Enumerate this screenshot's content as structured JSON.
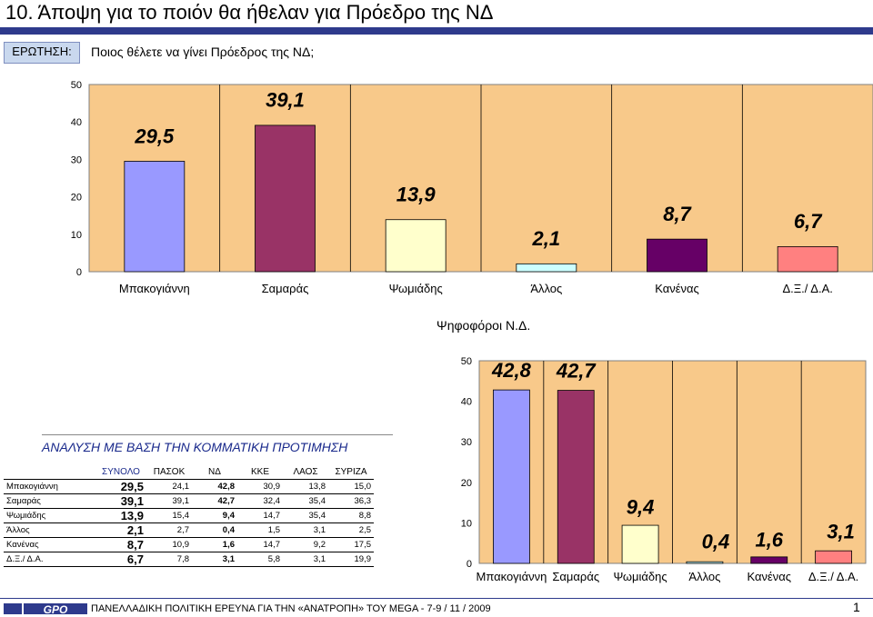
{
  "header": {
    "title": "10.  Άποψη για το ποιόν θα ήθελαν για Πρόεδρο της ΝΔ",
    "question_label": "ΕΡΩΤΗΣΗ:",
    "question_text": "Ποιος θέλετε να γίνει Πρόεδρος της ΝΔ;"
  },
  "colors": {
    "plot_bg": "#f8c98a",
    "title_rule": "#2e3a8c",
    "bar_colors": [
      "#9999ff",
      "#993366",
      "#ffffcc",
      "#ccffff",
      "#660066",
      "#ff8080"
    ]
  },
  "chart_data": [
    {
      "type": "bar",
      "title": "",
      "categories": [
        "Μπακογιάννη",
        "Σαμαράς",
        "Ψωμιάδης",
        "Άλλος",
        "Κανένας",
        "Δ.Ξ./ Δ.Α."
      ],
      "values": [
        29.5,
        39.1,
        13.9,
        2.1,
        8.7,
        6.7
      ],
      "value_labels": [
        "29,5",
        "39,1",
        "13,9",
        "2,1",
        "8,7",
        "6,7"
      ],
      "ylim": [
        0,
        50
      ],
      "yticks": [
        "0",
        "10",
        "20",
        "30",
        "40",
        "50"
      ],
      "grid": true
    },
    {
      "type": "bar",
      "title": "Ψηφοφόροι Ν.Δ.",
      "categories": [
        "Μπακογιάννη",
        "Σαμαράς",
        "Ψωμιάδης",
        "Άλλος",
        "Κανένας",
        "Δ.Ξ./ Δ.Α."
      ],
      "values": [
        42.8,
        42.7,
        9.4,
        0.4,
        1.6,
        3.1
      ],
      "value_labels": [
        "42,8",
        "42,7",
        "9,4",
        "0,4",
        "1,6",
        "3,1"
      ],
      "ylim": [
        0,
        50
      ],
      "yticks": [
        "0",
        "10",
        "20",
        "30",
        "40",
        "50"
      ],
      "grid": true
    }
  ],
  "analysis": {
    "title": "ΑΝΑΛΥΣΗ ΜΕ ΒΑΣΗ ΤΗΝ ΚΟΜΜΑΤΙΚΗ ΠΡΟΤΙΜΗΣΗ",
    "columns": [
      "ΣΥΝΟΛΟ",
      "ΠΑΣΟΚ",
      "ΝΔ",
      "ΚΚΕ",
      "ΛΑΟΣ",
      "ΣΥΡΙΖΑ"
    ],
    "rows": [
      {
        "name": "Μπακογιάννη",
        "values": [
          "29,5",
          "24,1",
          "42,8",
          "30,9",
          "13,8",
          "15,0"
        ]
      },
      {
        "name": "Σαμαράς",
        "values": [
          "39,1",
          "39,1",
          "42,7",
          "32,4",
          "35,4",
          "36,3"
        ]
      },
      {
        "name": "Ψωμιάδης",
        "values": [
          "13,9",
          "15,4",
          "9,4",
          "14,7",
          "35,4",
          "8,8"
        ]
      },
      {
        "name": "Άλλος",
        "values": [
          "2,1",
          "2,7",
          "0,4",
          "1,5",
          "3,1",
          "2,5"
        ]
      },
      {
        "name": "Κανένας",
        "values": [
          "8,7",
          "10,9",
          "1,6",
          "14,7",
          "9,2",
          "17,5"
        ]
      },
      {
        "name": "Δ.Ξ./ Δ.Α.",
        "values": [
          "6,7",
          "7,8",
          "3,1",
          "5,8",
          "3,1",
          "19,9"
        ]
      }
    ]
  },
  "footer": {
    "logo_text": "GPO",
    "text": "ΠΑΝΕΛΛΑΔΙΚΗ ΠΟΛΙΤΙΚΗ ΕΡΕΥΝΑ ΓΙΑ ΤΗΝ «ΑΝΑΤΡΟΠΗ» ΤΟΥ MEGA  -  7-9  / 11 / 2009",
    "page": "1"
  }
}
